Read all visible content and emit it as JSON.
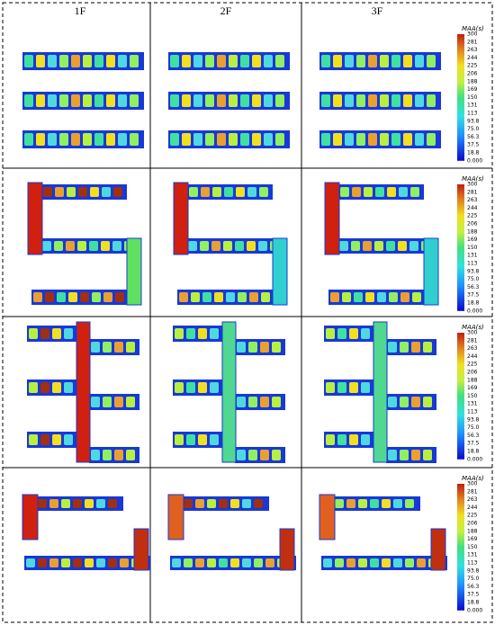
{
  "header": {
    "columns": [
      "1F",
      "2F",
      "3F"
    ]
  },
  "rows": [
    {
      "colorbar": {
        "title": "MAA(s)",
        "labels": [
          "300",
          "281",
          "263",
          "244",
          "225",
          "206",
          "188",
          "169",
          "150",
          "131",
          "113",
          "93.8",
          "75.0",
          "56.3",
          "37.5",
          "18.8",
          "0.000"
        ]
      }
    },
    {
      "colorbar": {
        "title": "MAA(s)",
        "labels": [
          "300",
          "281",
          "263",
          "244",
          "225",
          "206",
          "188",
          "169",
          "150",
          "131",
          "113",
          "93.8",
          "75.0",
          "56.3",
          "37.5",
          "18.8",
          "0.000"
        ]
      }
    },
    {
      "colorbar": {
        "title": "MAA(s)",
        "labels": [
          "300",
          "281",
          "263",
          "244",
          "225",
          "206",
          "188",
          "169",
          "150",
          "131",
          "113",
          "93.8",
          "75.0",
          "56.3",
          "37.5",
          "18.8",
          "0.000"
        ]
      }
    },
    {
      "colorbar": {
        "title": "MAA(s)",
        "labels": [
          "300",
          "281",
          "263",
          "244",
          "225",
          "206",
          "188",
          "169",
          "150",
          "131",
          "113",
          "93.8",
          "75.0",
          "56.3",
          "37.5",
          "18.8",
          "0.000"
        ]
      }
    }
  ]
}
